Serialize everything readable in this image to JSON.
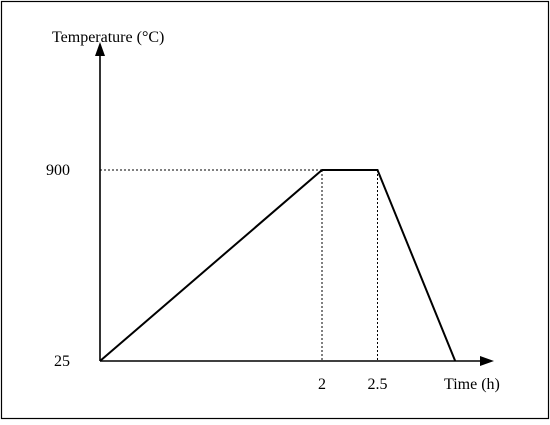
{
  "chart_data": {
    "type": "line",
    "title": "",
    "ylabel": "Temperature (°C)",
    "xlabel": "Time (h)",
    "x": [
      0,
      2,
      2.5,
      3.2
    ],
    "y": [
      25,
      900,
      900,
      25
    ],
    "xlim": [
      0,
      3.5
    ],
    "ylim": [
      25,
      1200
    ],
    "x_tick_labels": [
      {
        "value": 2,
        "label": "2"
      },
      {
        "value": 2.5,
        "label": "2.5"
      }
    ],
    "y_tick_labels": [
      {
        "value": 25,
        "label": "25"
      },
      {
        "value": 900,
        "label": "900"
      }
    ],
    "guides": "dotted lines from the hold segment to both axes",
    "grid": false,
    "legend": "none",
    "line_color": "#000000"
  }
}
